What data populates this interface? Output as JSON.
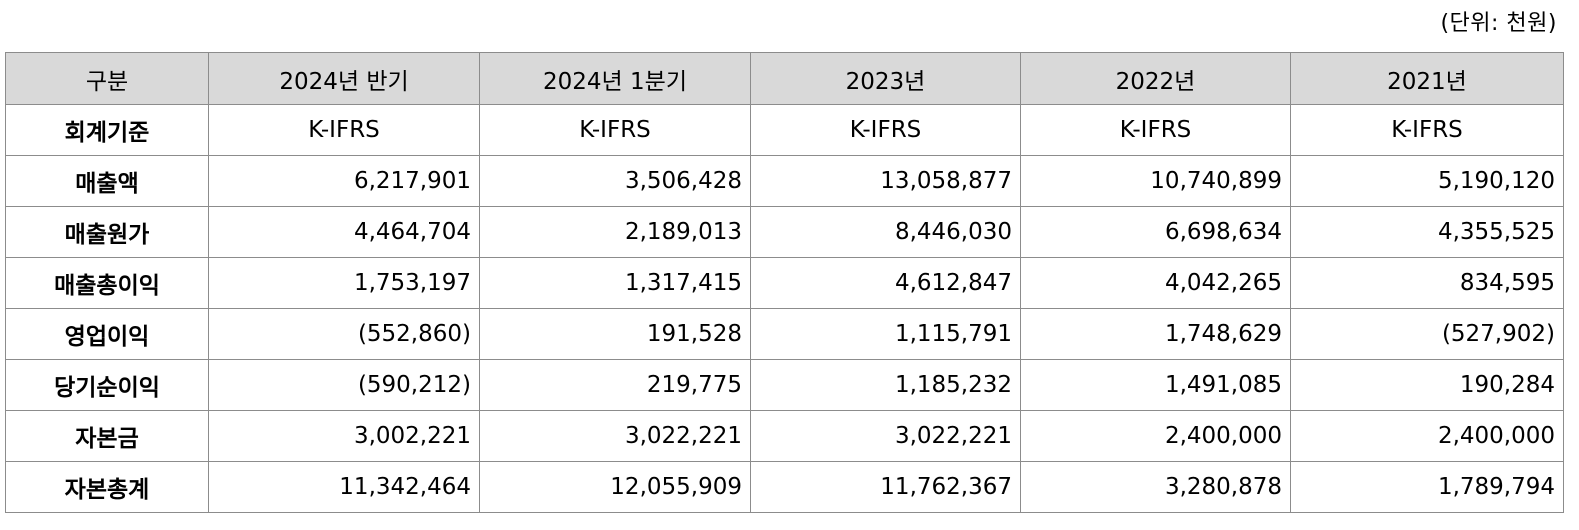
{
  "unit_note": "(단위: 천원)",
  "columns": [
    "구분",
    "2024년 반기",
    "2024년 1분기",
    "2023년",
    "2022년",
    "2021년"
  ],
  "standard_row": {
    "label": "회계기준",
    "values": [
      "K-IFRS",
      "K-IFRS",
      "K-IFRS",
      "K-IFRS",
      "K-IFRS"
    ]
  },
  "rows": [
    {
      "label": "매출액",
      "values": [
        "6,217,901",
        "3,506,428",
        "13,058,877",
        "10,740,899",
        "5,190,120"
      ]
    },
    {
      "label": "매출원가",
      "values": [
        "4,464,704",
        "2,189,013",
        "8,446,030",
        "6,698,634",
        "4,355,525"
      ]
    },
    {
      "label": "매출총이익",
      "values": [
        "1,753,197",
        "1,317,415",
        "4,612,847",
        "4,042,265",
        "834,595"
      ]
    },
    {
      "label": "영업이익",
      "values": [
        "(552,860)",
        "191,528",
        "1,115,791",
        "1,748,629",
        "(527,902)"
      ]
    },
    {
      "label": "당기순이익",
      "values": [
        "(590,212)",
        "219,775",
        "1,185,232",
        "1,491,085",
        "190,284"
      ]
    },
    {
      "label": "자본금",
      "values": [
        "3,002,221",
        "3,022,221",
        "3,022,221",
        "2,400,000",
        "2,400,000"
      ]
    },
    {
      "label": "자본총계",
      "values": [
        "11,342,464",
        "12,055,909",
        "11,762,367",
        "3,280,878",
        "1,789,794"
      ]
    }
  ],
  "colors": {
    "header_bg": "#d9d9d9",
    "border": "#8c8c8c"
  }
}
